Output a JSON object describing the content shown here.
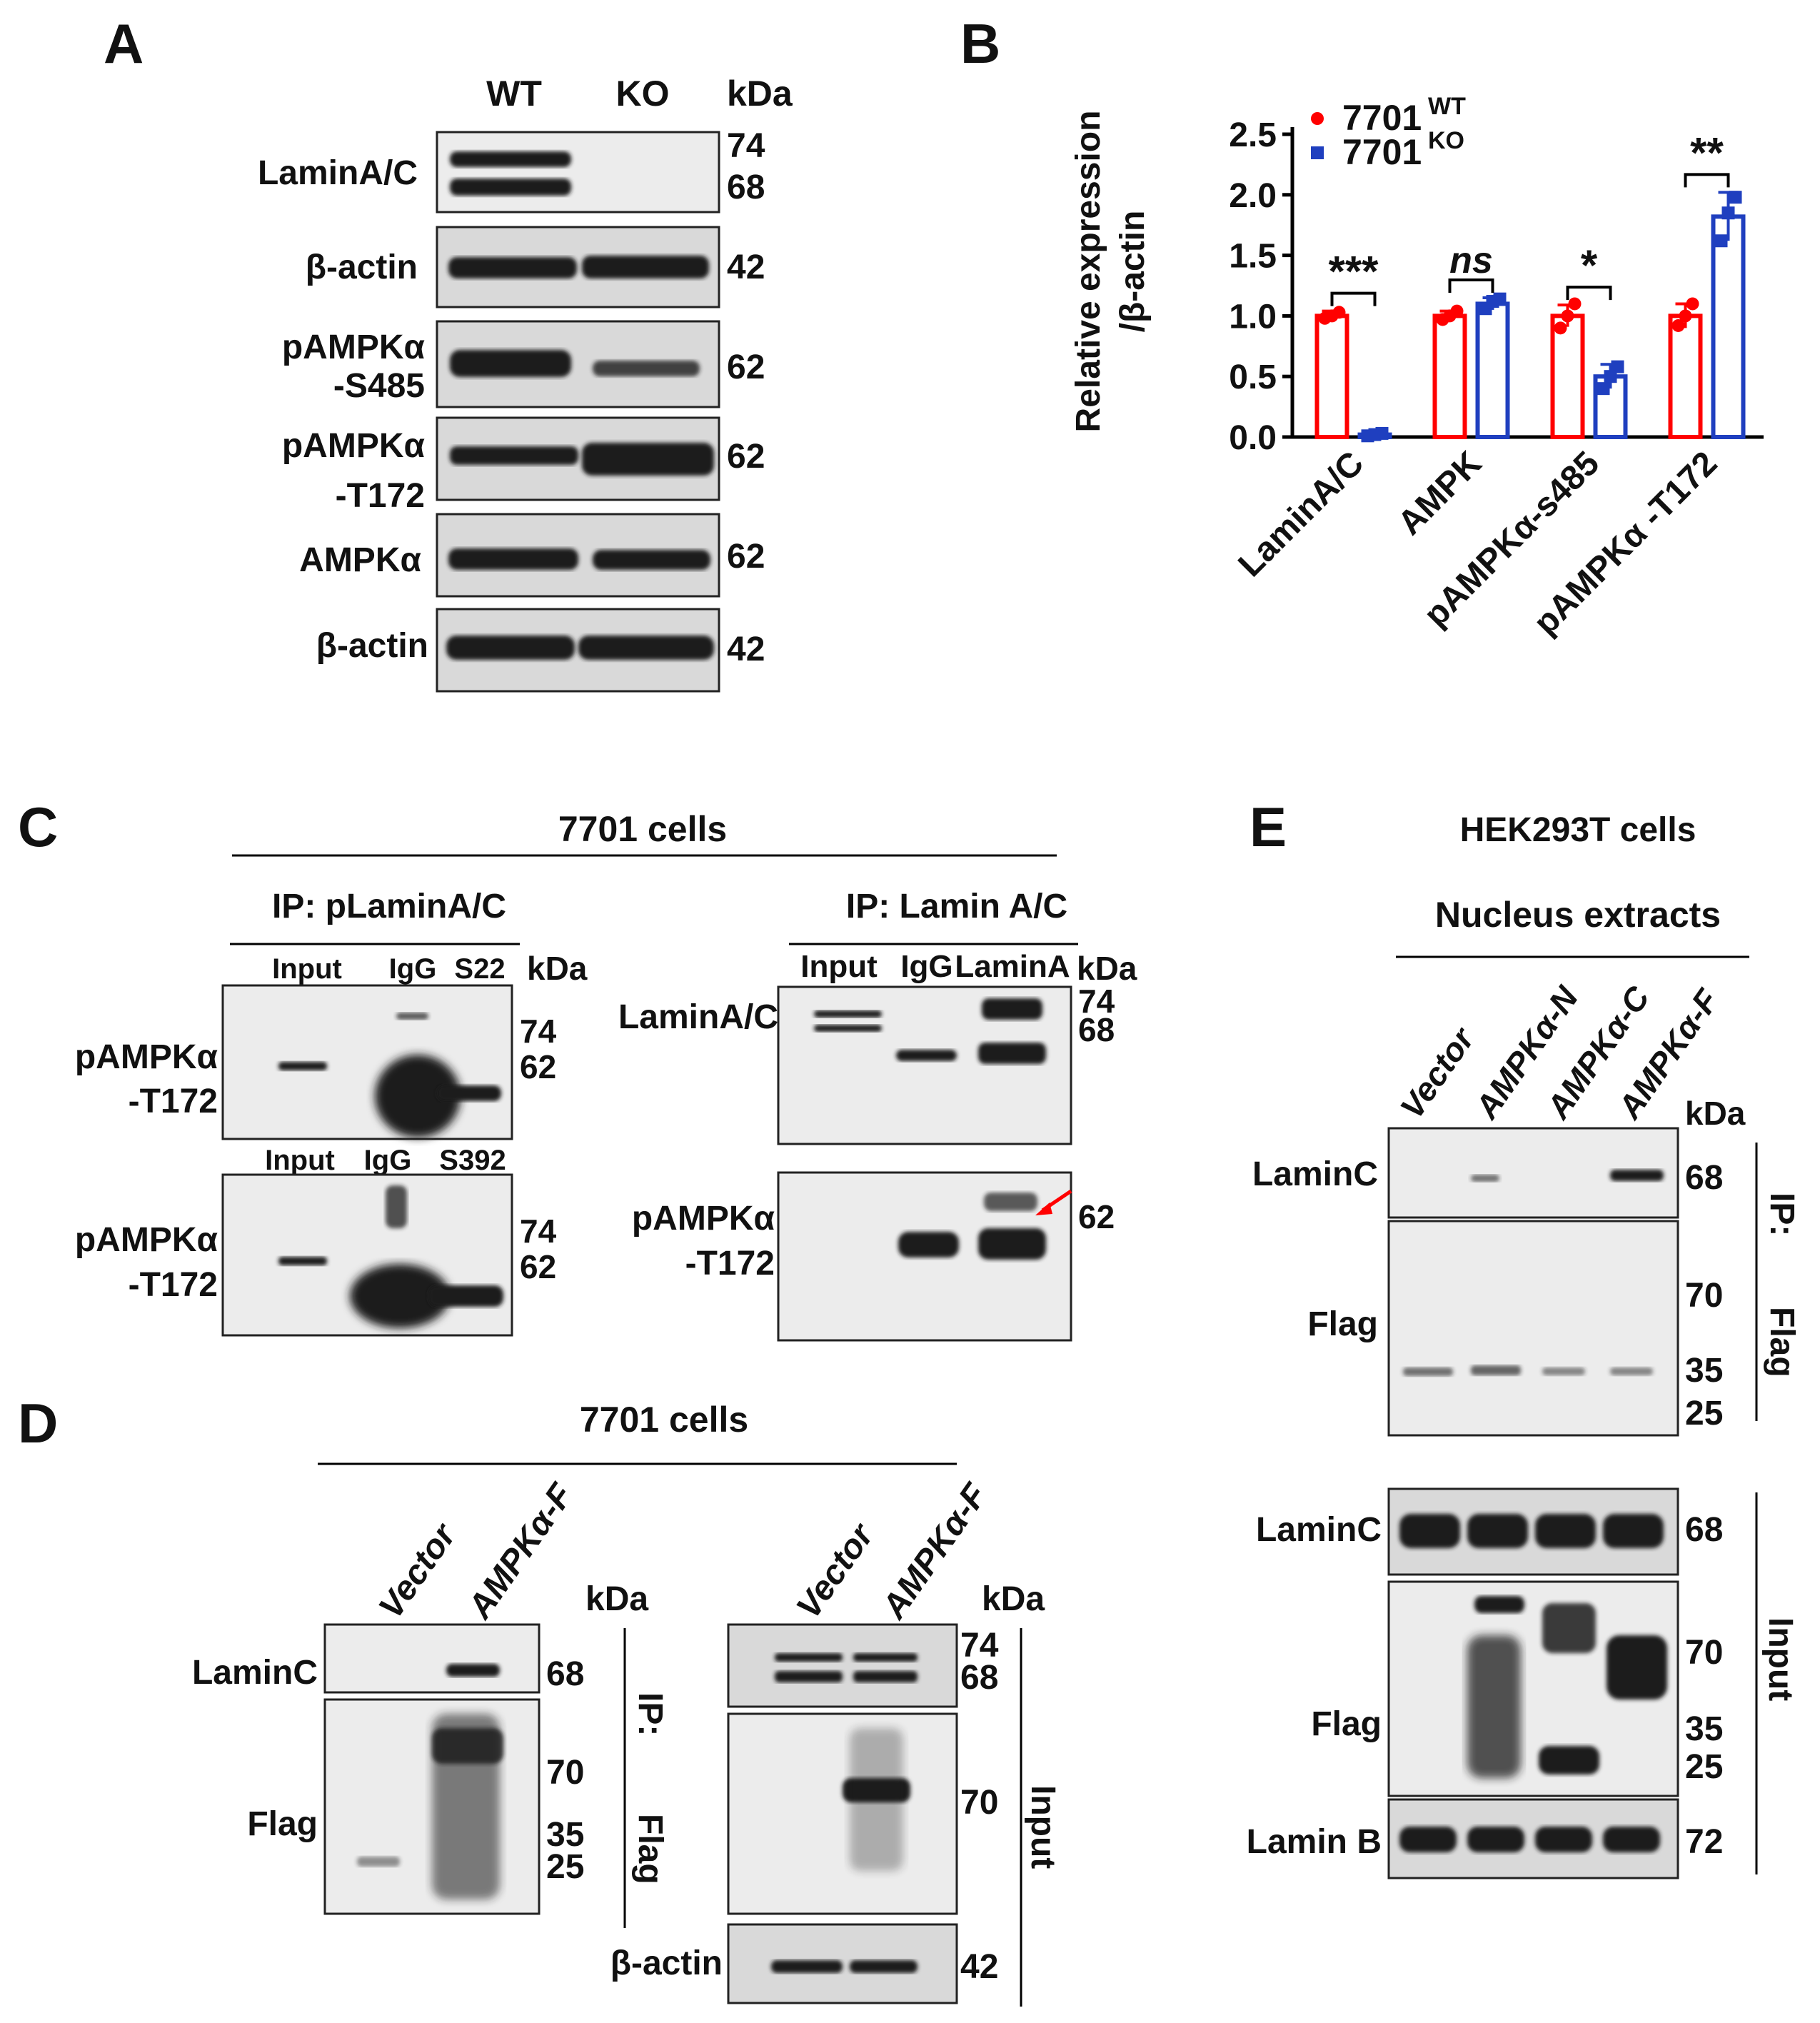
{
  "panelA": {
    "letter": "A",
    "lanes": [
      "WT",
      "KO"
    ],
    "kda_label": "kDa",
    "rows": [
      {
        "label": [
          "LaminA/C"
        ],
        "kda": [
          "74",
          "68"
        ]
      },
      {
        "label": [
          "β-actin"
        ],
        "kda": [
          "42"
        ]
      },
      {
        "label": [
          "pAMPKα",
          "-S485"
        ],
        "kda": [
          "62"
        ]
      },
      {
        "label": [
          "pAMPKα",
          "-T172"
        ],
        "kda": [
          "62"
        ]
      },
      {
        "label": [
          "AMPKα"
        ],
        "kda": [
          "62"
        ]
      },
      {
        "label": [
          "β-actin"
        ],
        "kda": [
          "42"
        ]
      }
    ]
  },
  "panelB": {
    "letter": "B"
  },
  "chart_data": {
    "type": "bar",
    "title": "",
    "xlabel": "",
    "ylabel": "Relative expression /β-actin",
    "ylabel_lines": [
      "Relative expression",
      "/β-actin"
    ],
    "ylim": [
      0,
      2.5
    ],
    "yticks": [
      "0.0",
      "0.5",
      "1.0",
      "1.5",
      "2.0",
      "2.5"
    ],
    "categories": [
      "LaminA/C",
      "AMPK",
      "pAMPKα-s485",
      "pAMPKα -T172"
    ],
    "series": [
      {
        "name": "7701",
        "superscript": "WT",
        "color": "#ff0000",
        "values": [
          1.0,
          1.0,
          1.0,
          1.0
        ],
        "errors": [
          0.04,
          0.04,
          0.09,
          0.1
        ],
        "points": [
          [
            0.98,
            1.0,
            1.03
          ],
          [
            0.97,
            1.0,
            1.04
          ],
          [
            0.9,
            1.0,
            1.1
          ],
          [
            0.92,
            1.0,
            1.1
          ]
        ]
      },
      {
        "name": "7701",
        "superscript": "KO",
        "color": "#1f3fbf",
        "values": [
          0.02,
          1.1,
          0.5,
          1.82
        ],
        "errors": [
          0.01,
          0.05,
          0.1,
          0.2
        ],
        "points": [
          [
            0.01,
            0.02,
            0.03
          ],
          [
            1.06,
            1.12,
            1.14
          ],
          [
            0.4,
            0.5,
            0.58
          ],
          [
            1.62,
            1.85,
            1.98
          ]
        ]
      }
    ],
    "significance": [
      "***",
      "ns",
      "*",
      "**"
    ],
    "legend_position": "top-left",
    "grid": false
  },
  "panelC": {
    "letter": "C",
    "header": "7701 cells",
    "left": {
      "title": "IP: pLaminA/C",
      "kda_label": "kDa",
      "lanes_top": [
        "Input",
        "IgG",
        "S22"
      ],
      "lanes_bottom": [
        "Input",
        "IgG",
        "S392"
      ],
      "label": [
        "pAMPKα",
        "-T172"
      ],
      "kda_top": [
        "74",
        "62"
      ],
      "kda_bottom": [
        "74",
        "62"
      ]
    },
    "right": {
      "title": "IP: Lamin A/C",
      "kda_label": "kDa",
      "lanes": [
        "Input",
        "IgG",
        "LaminA"
      ],
      "row1_label": [
        "LaminA/C"
      ],
      "row1_kda": [
        "74",
        "68"
      ],
      "row2_label": [
        "pAMPKα",
        "-T172"
      ],
      "row2_kda": [
        "62"
      ]
    }
  },
  "panelD": {
    "letter": "D",
    "header": "7701 cells",
    "lanes": [
      "Vector",
      "AMPKα-F"
    ],
    "kda_label": "kDa",
    "ip": {
      "side": [
        "IP:",
        "Flag"
      ],
      "laminc": "LaminC",
      "laminc_kda": [
        "68"
      ],
      "flag": "Flag",
      "flag_kda": [
        "70",
        "35",
        "25"
      ]
    },
    "input": {
      "side": "Input",
      "row1_kda": [
        "74",
        "68"
      ],
      "row2_kda": [
        "70"
      ],
      "actin": "β-actin",
      "actin_kda": [
        "42"
      ]
    }
  },
  "panelE": {
    "letter": "E",
    "header": "HEK293T cells",
    "subheader": "Nucleus extracts",
    "lanes": [
      "Vector",
      "AMPKα-N",
      "AMPKα-C",
      "AMPKα-F"
    ],
    "kda_label": "kDa",
    "ip": {
      "side": [
        "IP:",
        "Flag"
      ],
      "laminc": "LaminC",
      "laminc_kda": [
        "68"
      ],
      "flag": "Flag",
      "flag_kda": [
        "70",
        "35",
        "25"
      ]
    },
    "input": {
      "side": "Input",
      "laminc": "LaminC",
      "laminc_kda": [
        "68"
      ],
      "flag": "Flag",
      "flag_kda": [
        "70",
        "35",
        "25"
      ],
      "laminb": "Lamin B",
      "laminb_kda": [
        "72"
      ]
    }
  }
}
